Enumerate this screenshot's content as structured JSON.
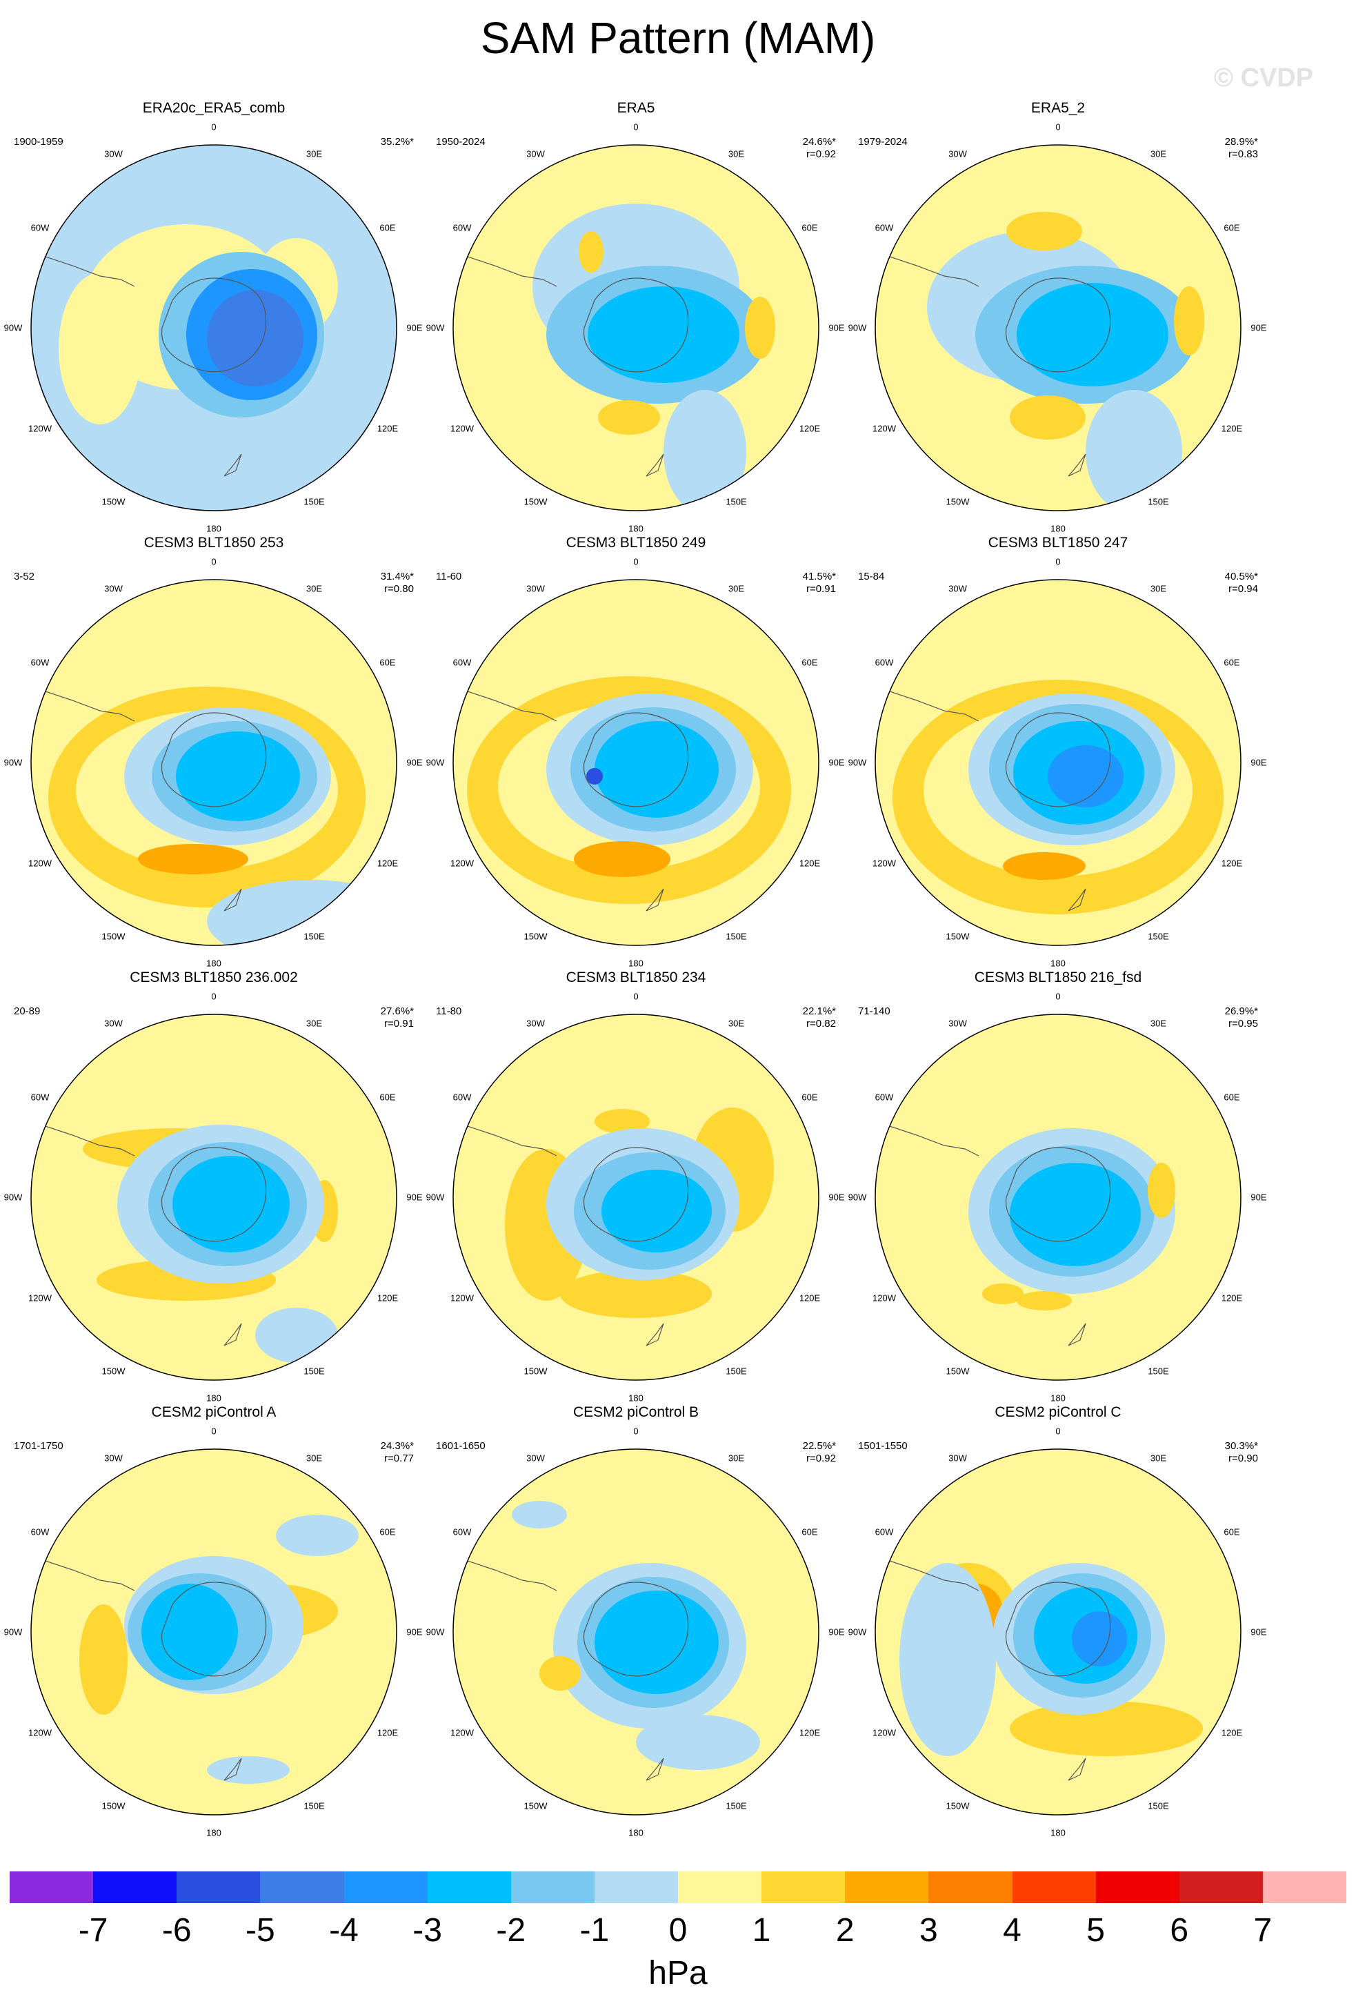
{
  "title": "SAM Pattern (MAM)",
  "watermark": "© CVDP",
  "longitude_labels": [
    "0",
    "30E",
    "60E",
    "90E",
    "120E",
    "150E",
    "180",
    "150W",
    "120W",
    "90W",
    "60W",
    "30W"
  ],
  "panels": [
    {
      "title": "ERA20c_ERA5_comb",
      "range": "1900-1959",
      "variance": "35.2%*",
      "correlation": ""
    },
    {
      "title": "ERA5",
      "range": "1950-2024",
      "variance": "24.6%*",
      "correlation": "r=0.92"
    },
    {
      "title": "ERA5_2",
      "range": "1979-2024",
      "variance": "28.9%*",
      "correlation": "r=0.83"
    },
    {
      "title": "CESM3 BLT1850 253",
      "range": "3-52",
      "variance": "31.4%*",
      "correlation": "r=0.80"
    },
    {
      "title": "CESM3 BLT1850 249",
      "range": "11-60",
      "variance": "41.5%*",
      "correlation": "r=0.91"
    },
    {
      "title": "CESM3 BLT1850 247",
      "range": "15-84",
      "variance": "40.5%*",
      "correlation": "r=0.94"
    },
    {
      "title": "CESM3 BLT1850 236.002",
      "range": "20-89",
      "variance": "27.6%*",
      "correlation": "r=0.91"
    },
    {
      "title": "CESM3 BLT1850 234",
      "range": "11-80",
      "variance": "22.1%*",
      "correlation": "r=0.82"
    },
    {
      "title": "CESM3 BLT1850 216_fsd",
      "range": "71-140",
      "variance": "26.9%*",
      "correlation": "r=0.95"
    },
    {
      "title": "CESM2 piControl A",
      "range": "1701-1750",
      "variance": "24.3%*",
      "correlation": "r=0.77"
    },
    {
      "title": "CESM2 piControl B",
      "range": "1601-1650",
      "variance": "22.5%*",
      "correlation": "r=0.92"
    },
    {
      "title": "CESM2 piControl C",
      "range": "1501-1550",
      "variance": "30.3%*",
      "correlation": "r=0.90"
    }
  ],
  "colorbar": {
    "colors": [
      "#8a2be2",
      "#1010ff",
      "#2a4fe0",
      "#3c7ee8",
      "#1e96ff",
      "#00bfff",
      "#78c8f0",
      "#b4dcf4",
      "#fff799",
      "#ffd732",
      "#ffaa00",
      "#ff7f00",
      "#ff3f00",
      "#f00000",
      "#d21e1e",
      "#ffb4b4"
    ],
    "tick_labels": [
      "-7",
      "-6",
      "-5",
      "-4",
      "-3",
      "-2",
      "-1",
      "0",
      "1",
      "2",
      "3",
      "4",
      "5",
      "6",
      "7"
    ],
    "units": "hPa"
  }
}
